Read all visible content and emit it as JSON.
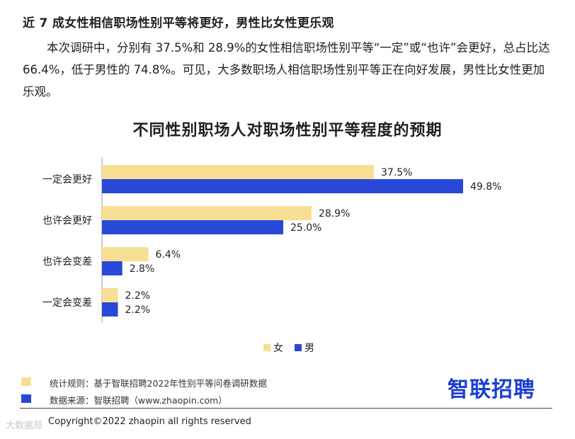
{
  "heading": "近 7 成女性相信职场性别平等将更好，男性比女性更乐观",
  "paragraph": "本次调研中，分别有 37.5%和 28.9%的女性相信职场性别平等“一定”或“也许”会更好，总占比达 66.4%，低于男性的 74.8%。可见，大多数职场人相信职场性别平等正在向好发展，男性比女性更加乐观。",
  "chart_data": {
    "type": "bar",
    "orientation": "horizontal",
    "title": "不同性别职场人对职场性别平等程度的预期",
    "categories": [
      "一定会更好",
      "也许会更好",
      "也许会变差",
      "一定会变差"
    ],
    "series": [
      {
        "name": "女",
        "values": [
          37.5,
          28.9,
          6.4,
          2.2
        ],
        "color": "#f7df93"
      },
      {
        "name": "男",
        "values": [
          49.8,
          25.0,
          2.8,
          2.2
        ],
        "color": "#2a48d8"
      }
    ],
    "value_labels": {
      "女": [
        "37.5%",
        "28.9%",
        "6.4%",
        "2.2%"
      ],
      "男": [
        "49.8%",
        "25.0%",
        "2.8%",
        "2.2%"
      ]
    },
    "xlim": [
      0,
      50
    ],
    "legend_position": "bottom",
    "grid": false
  },
  "footer": {
    "rule_text": "统计规则：基于智联招聘2022年性别平等问卷调研数据",
    "rule_color": "#f7df93",
    "source_text": "数据来源：智联招聘（www.zhaopin.com）",
    "source_color": "#2a48d8",
    "brand": "智联招聘",
    "copyright": "Copyright©2022 zhaopin all rights reserved",
    "watermark": "大数据局"
  }
}
